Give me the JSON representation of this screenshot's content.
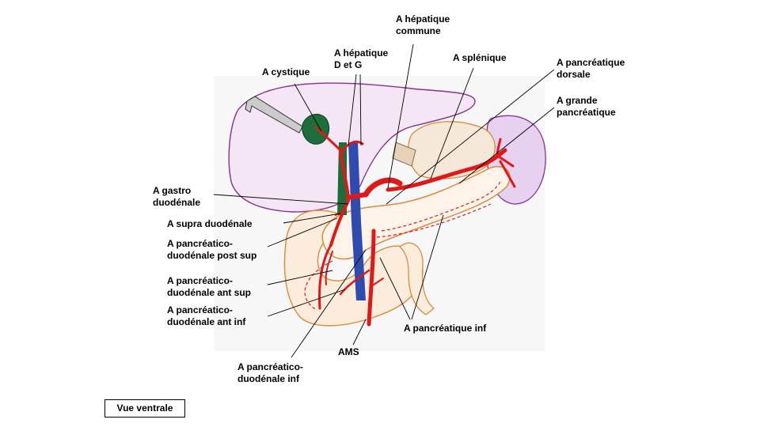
{
  "labels": {
    "hepatique_commune": [
      "A hépatique",
      "commune"
    ],
    "hepatique_dg": [
      "A hépatique",
      "D et G"
    ],
    "cystique": [
      "A cystique"
    ],
    "splenique": [
      "A splénique"
    ],
    "pancreatique_dorsale": [
      "A pancréatique",
      "dorsale"
    ],
    "grande_pancreatique": [
      "A grande",
      "pancréatique"
    ],
    "gastro_duodenale": [
      "A gastro",
      "duodénale"
    ],
    "supra_duodenale": [
      "A supra duodénale"
    ],
    "pd_post_sup": [
      "A pancréatico-",
      "duodénale post sup"
    ],
    "pd_ant_sup": [
      "A pancréatico-",
      "duodénale ant sup"
    ],
    "pd_ant_inf": [
      "A pancréatico-",
      "duodénale ant inf"
    ],
    "pancreatique_inf": [
      "A pancréatique inf"
    ],
    "ams": [
      "AMS"
    ],
    "pd_inf": [
      "A pancréatico-",
      "duodénale inf"
    ]
  },
  "view_label": "Vue ventrale",
  "colors": {
    "artery": "#e01818",
    "liver_outline": "#8a2f8f",
    "liver_fill": "#f4e6f4",
    "spleen_fill": "#e6d2f0",
    "pancreas_outline": "#d98a3a",
    "pancreas_fill": "#fdf3e8",
    "gallbladder": "#1e6e3c",
    "portal_vein": "#2f4bb0"
  }
}
